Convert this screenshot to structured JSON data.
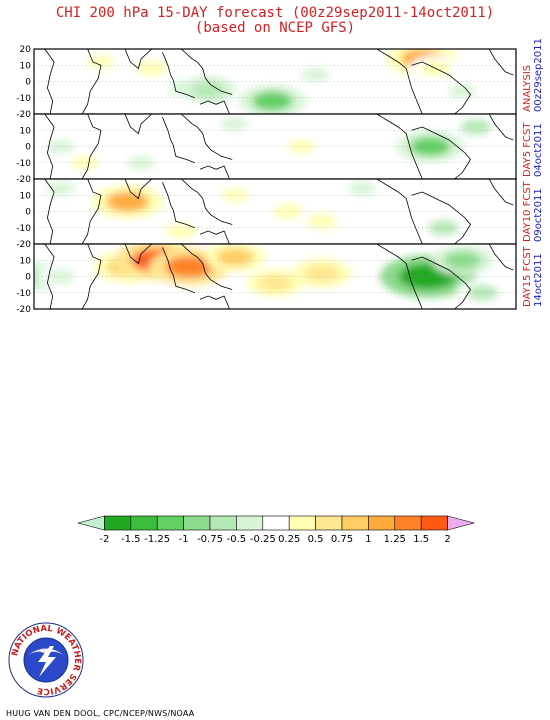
{
  "title": "CHI 200 hPa 15-DAY forecast (00z29sep2011-14oct2011)",
  "subtitle": "(based on NCEP GFS)",
  "credit": "HUUG VAN DEN DOOL, CPC/NCEP/NWS/NOAA",
  "logo": {
    "ring_text": "NATIONAL WEATHER SERVICE",
    "icon": "nws-lightning-logo"
  },
  "colors": {
    "title": "#d42020",
    "side_label_top": "#d42020",
    "side_label_bottom": "#2020c8"
  },
  "chart_data": {
    "type": "heatmap",
    "variable": "CHI 200 hPa",
    "panels": [
      {
        "label_top": "ANALYSIS",
        "label_bottom": "00z29sep2011",
        "anomalies": [
          {
            "lon": 50,
            "lat": 12,
            "value": 0.3
          },
          {
            "lon": 88,
            "lat": 8,
            "value": 0.5
          },
          {
            "lon": 112,
            "lat": -4,
            "value": -0.4
          },
          {
            "lon": 130,
            "lat": -5,
            "value": -0.6
          },
          {
            "lon": 178,
            "lat": -12,
            "value": -1.0
          },
          {
            "lon": 210,
            "lat": 4,
            "value": -0.3
          },
          {
            "lon": 290,
            "lat": 14,
            "value": 1.1
          },
          {
            "lon": 300,
            "lat": 8,
            "value": 0.5
          },
          {
            "lon": 320,
            "lat": -6,
            "value": -0.3
          }
        ]
      },
      {
        "label_top": "DAY5 FCST",
        "label_bottom": "04oct2011",
        "anomalies": [
          {
            "lon": 20,
            "lat": 0,
            "value": -0.3
          },
          {
            "lon": 38,
            "lat": -10,
            "value": 0.3
          },
          {
            "lon": 80,
            "lat": -10,
            "value": -0.3
          },
          {
            "lon": 150,
            "lat": 14,
            "value": -0.3
          },
          {
            "lon": 200,
            "lat": 0,
            "value": 0.3
          },
          {
            "lon": 296,
            "lat": 0,
            "value": -1.0
          },
          {
            "lon": 330,
            "lat": 12,
            "value": -0.5
          }
        ]
      },
      {
        "label_top": "DAY10 FCST",
        "label_bottom": "09oct2011",
        "anomalies": [
          {
            "lon": 20,
            "lat": 14,
            "value": -0.3
          },
          {
            "lon": 70,
            "lat": 6,
            "value": 1.1
          },
          {
            "lon": 110,
            "lat": -12,
            "value": 0.5
          },
          {
            "lon": 150,
            "lat": 10,
            "value": 0.3
          },
          {
            "lon": 190,
            "lat": 0,
            "value": 0.5
          },
          {
            "lon": 215,
            "lat": -6,
            "value": 0.5
          },
          {
            "lon": 245,
            "lat": 14,
            "value": -0.3
          },
          {
            "lon": 306,
            "lat": -10,
            "value": -0.5
          }
        ]
      },
      {
        "label_top": "DAY15 FCST",
        "label_bottom": "14oct2011",
        "anomalies": [
          {
            "lon": 5,
            "lat": 0,
            "value": -0.6
          },
          {
            "lon": 20,
            "lat": 0,
            "value": -0.3
          },
          {
            "lon": 70,
            "lat": 6,
            "value": 1.0
          },
          {
            "lon": 92,
            "lat": 10,
            "value": 1.6
          },
          {
            "lon": 116,
            "lat": 6,
            "value": 1.4
          },
          {
            "lon": 150,
            "lat": 12,
            "value": 0.8
          },
          {
            "lon": 180,
            "lat": -4,
            "value": 0.6
          },
          {
            "lon": 215,
            "lat": 2,
            "value": 0.7
          },
          {
            "lon": 270,
            "lat": 0,
            "value": 0.5
          },
          {
            "lon": 294,
            "lat": 0,
            "value": -1.9
          },
          {
            "lon": 320,
            "lat": 10,
            "value": -0.8
          },
          {
            "lon": 335,
            "lat": -10,
            "value": -0.5
          }
        ]
      }
    ],
    "xlim": [
      0,
      360
    ],
    "ylim": [
      -20,
      20
    ],
    "y_ticks": [
      "20",
      "10",
      "0",
      "-10",
      "-20"
    ],
    "legend": {
      "levels": [
        "-2",
        "-1.5",
        "-1.25",
        "-1",
        "-0.75",
        "-0.5",
        "-0.25",
        "0.25",
        "0.5",
        "0.75",
        "1",
        "1.25",
        "1.5",
        "2"
      ],
      "colors": [
        "#bff0d0",
        "#22a822",
        "#3cbe3c",
        "#62d062",
        "#8cdc8c",
        "#b4e8b4",
        "#d8f4d8",
        "#ffffff",
        "#ffffb4",
        "#ffe690",
        "#ffcd64",
        "#ffaa3c",
        "#ff8228",
        "#ff5a14",
        "#e8aef0"
      ]
    }
  }
}
